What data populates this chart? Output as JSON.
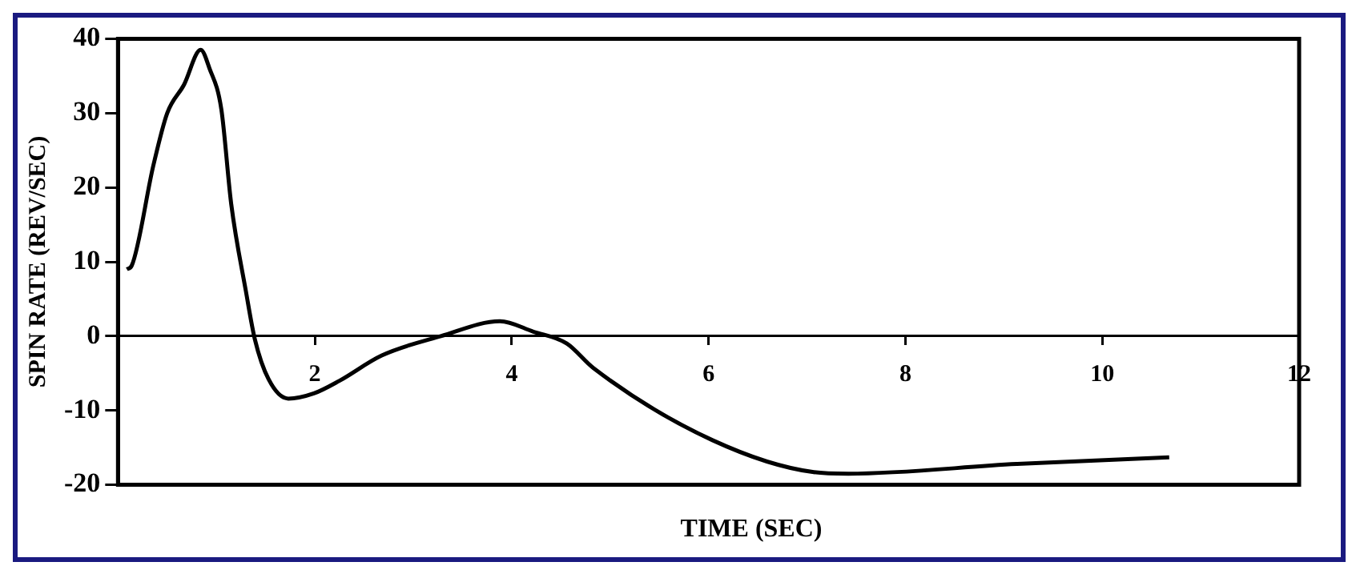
{
  "chart_data": {
    "type": "line",
    "xlabel": "TIME (SEC)",
    "ylabel": "SPIN RATE (REV/SEC)",
    "x": [
      0.09,
      0.14,
      0.36,
      0.5,
      0.67,
      0.84,
      0.93,
      1.05,
      1.15,
      1.3,
      1.39,
      1.53,
      1.73,
      1.99,
      2.25,
      2.68,
      3.28,
      3.88,
      4.22,
      4.56,
      4.83,
      6.04,
      7.07,
      7.42,
      9.13,
      10.68
    ],
    "series": [
      {
        "color": "#000000",
        "values": [
          9,
          9.5,
          23,
          30,
          33.8,
          38.5,
          36,
          30.5,
          17.8,
          6,
          -0.4,
          -5.8,
          -8.4,
          -7.7,
          -6,
          -2.6,
          0,
          2,
          0.6,
          -1,
          -4.3,
          -14,
          -18.3,
          -18.5,
          -17.2,
          -16.3
        ]
      }
    ],
    "xlim": [
      0,
      12
    ],
    "xticks": [
      {
        "value": 0,
        "label": null
      },
      2,
      4,
      6,
      8,
      10,
      12
    ],
    "ylim": [
      -20,
      40
    ],
    "yticks": [
      -20,
      -10,
      0,
      10,
      20,
      30,
      40
    ],
    "grid": false,
    "legend": false,
    "marker": "none",
    "line_style": "solid"
  }
}
